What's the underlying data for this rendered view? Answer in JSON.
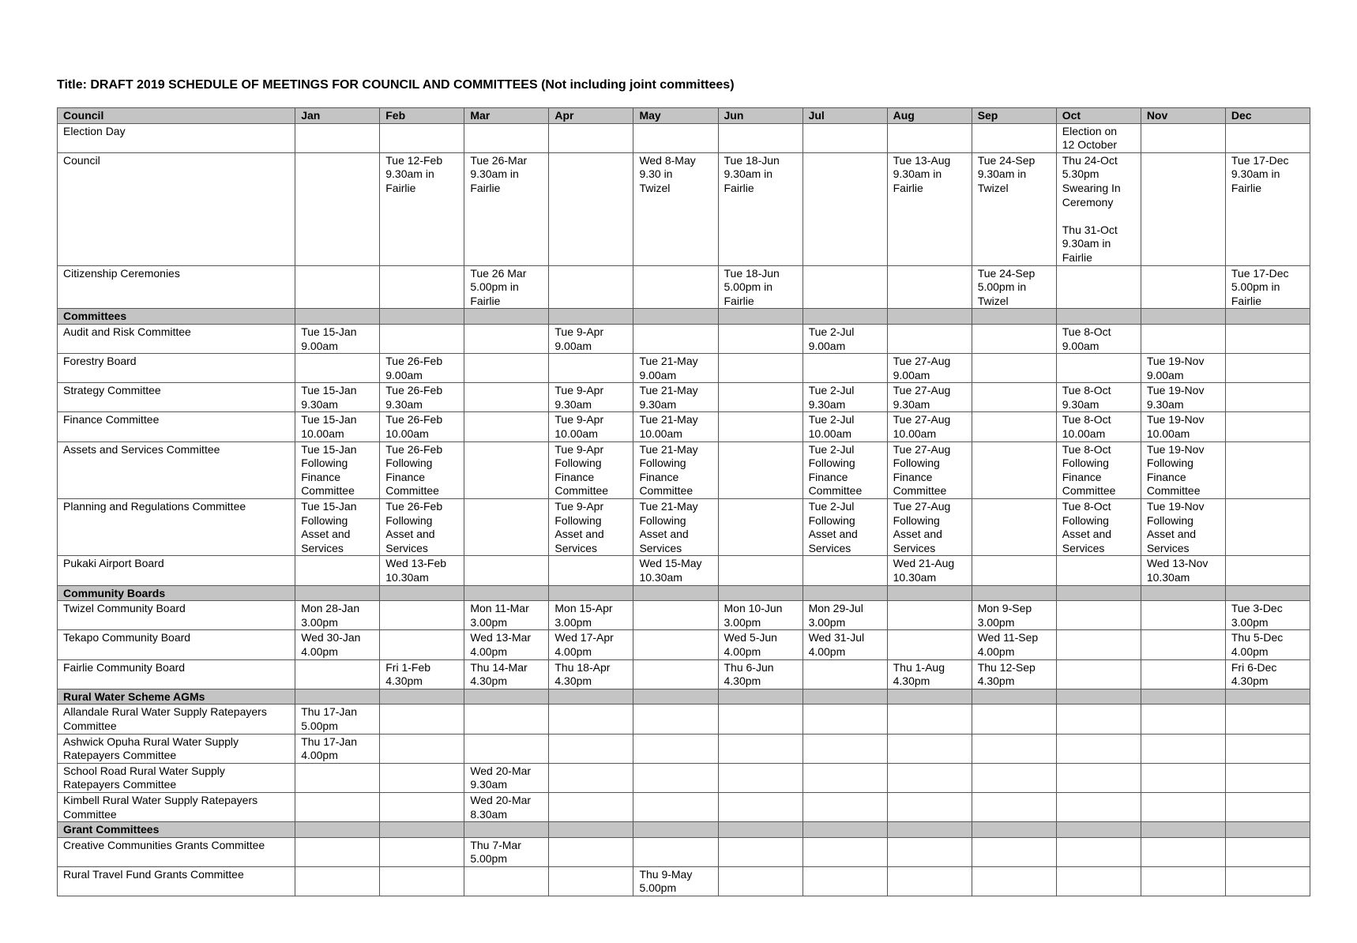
{
  "title": "Title:  DRAFT 2019 SCHEDULE OF MEETINGS FOR COUNCIL AND COMMITTEES (Not including joint committees)",
  "table": {
    "months": [
      "Jan",
      "Feb",
      "Mar",
      "Apr",
      "May",
      "Jun",
      "Jul",
      "Aug",
      "Sep",
      "Oct",
      "Nov",
      "Dec"
    ],
    "sections": [
      {
        "name": "Council",
        "rows": [
          {
            "label": "Election Day",
            "cells": [
              "",
              "",
              "",
              "",
              "",
              "",
              "",
              "",
              "",
              "Election on\n12 October",
              "",
              ""
            ]
          },
          {
            "label": "Council",
            "cells": [
              "",
              "Tue 12-Feb\n9.30am in\nFairlie",
              "Tue 26-Mar\n9.30am in\nFairlie",
              "",
              "Wed 8-May\n9.30 in\nTwizel",
              "Tue 18-Jun\n9.30am in\nFairlie",
              "",
              "Tue 13-Aug\n9.30am in\nFairlie",
              "Tue 24-Sep\n9.30am in\nTwizel",
              "Thu 24-Oct\n5.30pm\nSwearing In\nCeremony\n\nThu 31-Oct\n9.30am in\nFairlie",
              "",
              "Tue 17-Dec\n9.30am in\nFairlie"
            ]
          },
          {
            "label": "Citizenship Ceremonies",
            "cells": [
              "",
              "",
              "Tue 26 Mar\n5.00pm in\nFairlie",
              "",
              "",
              "Tue 18-Jun\n5.00pm in\nFairlie",
              "",
              "",
              "Tue 24-Sep\n5.00pm in\nTwizel",
              "",
              "",
              "Tue 17-Dec\n5.00pm in\nFairlie"
            ]
          }
        ]
      },
      {
        "name": "Committees",
        "rows": [
          {
            "label": "Audit and Risk Committee",
            "cells": [
              "Tue 15-Jan\n9.00am",
              "",
              "",
              "Tue 9-Apr\n9.00am",
              "",
              "",
              "Tue 2-Jul\n9.00am",
              "",
              "",
              "Tue 8-Oct\n9.00am",
              "",
              ""
            ]
          },
          {
            "label": "Forestry Board",
            "cells": [
              "",
              "Tue 26-Feb\n9.00am",
              "",
              "",
              "Tue 21-May\n9.00am",
              "",
              "",
              "Tue 27-Aug\n9.00am",
              "",
              "",
              "Tue 19-Nov\n9.00am",
              ""
            ]
          },
          {
            "label": "Strategy Committee",
            "cells": [
              "Tue 15-Jan\n9.30am",
              "Tue 26-Feb\n9.30am",
              "",
              "Tue 9-Apr\n9.30am",
              "Tue 21-May\n9.30am",
              "",
              "Tue 2-Jul\n9.30am",
              "Tue 27-Aug\n9.30am",
              "",
              "Tue 8-Oct\n9.30am",
              "Tue 19-Nov\n9.30am",
              ""
            ]
          },
          {
            "label": "Finance Committee",
            "cells": [
              "Tue 15-Jan\n10.00am",
              "Tue 26-Feb\n10.00am",
              "",
              "Tue 9-Apr\n10.00am",
              "Tue 21-May\n10.00am",
              "",
              "Tue 2-Jul\n10.00am",
              "Tue 27-Aug\n10.00am",
              "",
              "Tue 8-Oct\n10.00am",
              "Tue 19-Nov\n10.00am",
              ""
            ]
          },
          {
            "label": "Assets and Services Committee",
            "cells": [
              "Tue 15-Jan\nFollowing\nFinance\nCommittee",
              "Tue 26-Feb\nFollowing\nFinance\nCommittee",
              "",
              "Tue 9-Apr\nFollowing\nFinance\nCommittee",
              "Tue 21-May\nFollowing\nFinance\nCommittee",
              "",
              "Tue 2-Jul\nFollowing\nFinance\nCommittee",
              "Tue 27-Aug\nFollowing\nFinance\nCommittee",
              "",
              "Tue 8-Oct\nFollowing\nFinance\nCommittee",
              "Tue 19-Nov\nFollowing\nFinance\nCommittee",
              ""
            ]
          },
          {
            "label": "Planning and Regulations Committee",
            "cells": [
              "Tue 15-Jan\nFollowing\nAsset and\nServices",
              "Tue 26-Feb\nFollowing\nAsset and\nServices",
              "",
              "Tue 9-Apr\nFollowing\nAsset and\nServices",
              "Tue 21-May\nFollowing\nAsset and\nServices",
              "",
              "Tue 2-Jul\nFollowing\nAsset and\nServices",
              "Tue 27-Aug\nFollowing\nAsset and\nServices",
              "",
              "Tue 8-Oct\nFollowing\nAsset and\nServices",
              "Tue 19-Nov\nFollowing\nAsset and\nServices",
              ""
            ]
          },
          {
            "label": "Pukaki Airport Board",
            "cells": [
              "",
              "Wed 13-Feb\n10.30am",
              "",
              "",
              "Wed 15-May\n10.30am",
              "",
              "",
              "Wed 21-Aug\n10.30am",
              "",
              "",
              "Wed 13-Nov\n10.30am",
              ""
            ]
          }
        ]
      },
      {
        "name": "Community Boards",
        "rows": [
          {
            "label": "Twizel Community Board",
            "cells": [
              "Mon 28-Jan\n3.00pm",
              "",
              "Mon 11-Mar\n3.00pm",
              "Mon 15-Apr\n3.00pm",
              "",
              "Mon 10-Jun\n3.00pm",
              "Mon 29-Jul\n3.00pm",
              "",
              "Mon 9-Sep\n3.00pm",
              "",
              "",
              "Tue 3-Dec\n3.00pm"
            ]
          },
          {
            "label": "Tekapo Community Board",
            "cells": [
              "Wed 30-Jan\n4.00pm",
              "",
              "Wed 13-Mar\n4.00pm",
              "Wed 17-Apr\n4.00pm",
              "",
              "Wed 5-Jun\n4.00pm",
              "Wed 31-Jul\n4.00pm",
              "",
              "Wed 11-Sep\n4.00pm",
              "",
              "",
              "Thu 5-Dec\n4.00pm"
            ]
          },
          {
            "label": "Fairlie Community Board",
            "cells": [
              "",
              "Fri 1-Feb\n4.30pm",
              "Thu 14-Mar\n4.30pm",
              "Thu 18-Apr\n4.30pm",
              "",
              "Thu 6-Jun\n4.30pm",
              "",
              "Thu 1-Aug\n4.30pm",
              "Thu 12-Sep\n4.30pm",
              "",
              "",
              "Fri 6-Dec\n4.30pm"
            ]
          }
        ]
      },
      {
        "name": "Rural Water Scheme AGMs",
        "rows": [
          {
            "label": "Allandale Rural Water Supply Ratepayers\nCommittee",
            "cells": [
              "Thu 17-Jan\n5.00pm",
              "",
              "",
              "",
              "",
              "",
              "",
              "",
              "",
              "",
              "",
              ""
            ]
          },
          {
            "label": "Ashwick Opuha Rural Water Supply\nRatepayers Committee",
            "cells": [
              "Thu 17-Jan\n4.00pm",
              "",
              "",
              "",
              "",
              "",
              "",
              "",
              "",
              "",
              "",
              ""
            ]
          },
          {
            "label": "School Road Rural Water Supply\nRatepayers Committee",
            "cells": [
              "",
              "",
              "Wed 20-Mar\n9.30am",
              "",
              "",
              "",
              "",
              "",
              "",
              "",
              "",
              ""
            ]
          },
          {
            "label": "Kimbell Rural Water Supply Ratepayers\nCommittee",
            "cells": [
              "",
              "",
              "Wed 20-Mar\n8.30am",
              "",
              "",
              "",
              "",
              "",
              "",
              "",
              "",
              ""
            ]
          }
        ]
      },
      {
        "name": "Grant Committees",
        "rows": [
          {
            "label": "Creative Communities Grants Committee",
            "cells": [
              "",
              "",
              "Thu 7-Mar\n5.00pm",
              "",
              "",
              "",
              "",
              "",
              "",
              "",
              "",
              ""
            ]
          },
          {
            "label": "Rural Travel Fund Grants Committee",
            "cells": [
              "",
              "",
              "",
              "",
              "Thu 9-May\n5.00pm",
              "",
              "",
              "",
              "",
              "",
              "",
              ""
            ]
          }
        ]
      }
    ]
  }
}
